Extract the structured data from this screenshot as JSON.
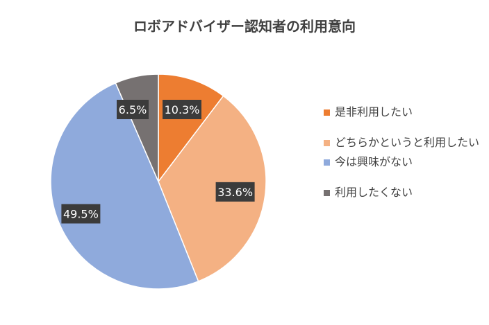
{
  "chart_data": {
    "type": "pie",
    "title": "ロボアドバイザー認知者の利用意向",
    "categories": [
      "是非利用したい",
      "どちらかというと利用したい",
      "今は興味がない",
      "利用したくない"
    ],
    "values": [
      10.3,
      33.6,
      49.5,
      6.5
    ],
    "data_labels": [
      "10.3%",
      "33.6%",
      "49.5%",
      "6.5%"
    ],
    "colors": [
      "#ED7D31",
      "#F4B183",
      "#8FAADC",
      "#767171"
    ],
    "legend_position": "right"
  }
}
